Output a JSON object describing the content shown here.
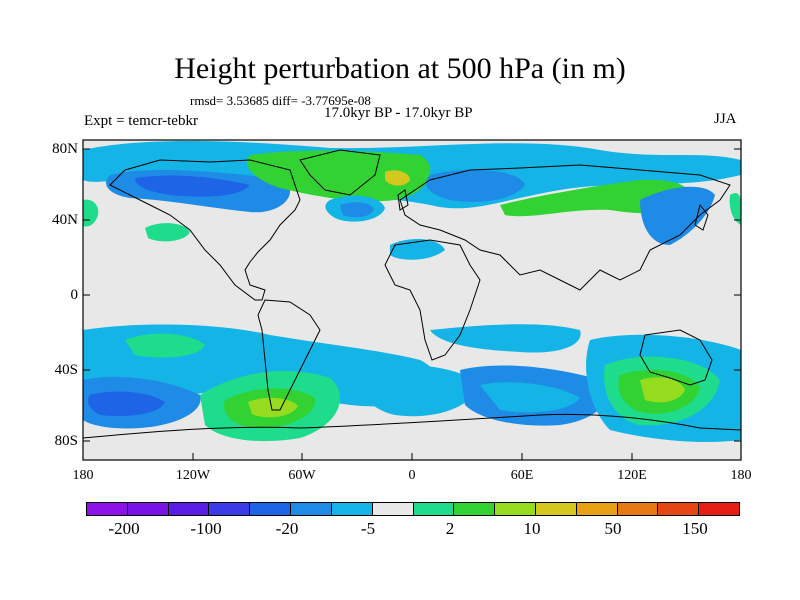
{
  "title": "Height perturbation at 500 hPa (in m)",
  "subtitle": "rmsd= 3.53685 diff= -3.77695e-08",
  "period": "17.0kyr BP - 17.0kyr BP",
  "experiment": "Expt = temcr-tebkr",
  "season": "JJA",
  "lat_labels": [
    "80N",
    "40N",
    "0",
    "40S",
    "80S"
  ],
  "lon_labels": [
    "180",
    "120W",
    "60W",
    "0",
    "60E",
    "120E",
    "180"
  ],
  "colorbar": {
    "colors": [
      "#8c14e6",
      "#7814e6",
      "#5a1ee6",
      "#3c3ce6",
      "#1e64e6",
      "#1e8ce6",
      "#14b4e6",
      "#e8e8e8",
      "#1edc8c",
      "#32d232",
      "#96dc1e",
      "#d2c81e",
      "#e6a014",
      "#e67814",
      "#e64614",
      "#e61e14"
    ],
    "labels": [
      "-200",
      "-100",
      "-20",
      "-5",
      "2",
      "10",
      "50",
      "150"
    ]
  },
  "colors": {
    "neutral": "#e8e8e8",
    "light_blue": "#14b4e6",
    "blue": "#1e8ce6",
    "dark_blue": "#1e64e6",
    "teal_green": "#1edc8c",
    "green": "#32d232",
    "yellow_green": "#96dc1e",
    "gold": "#d2c81e"
  }
}
